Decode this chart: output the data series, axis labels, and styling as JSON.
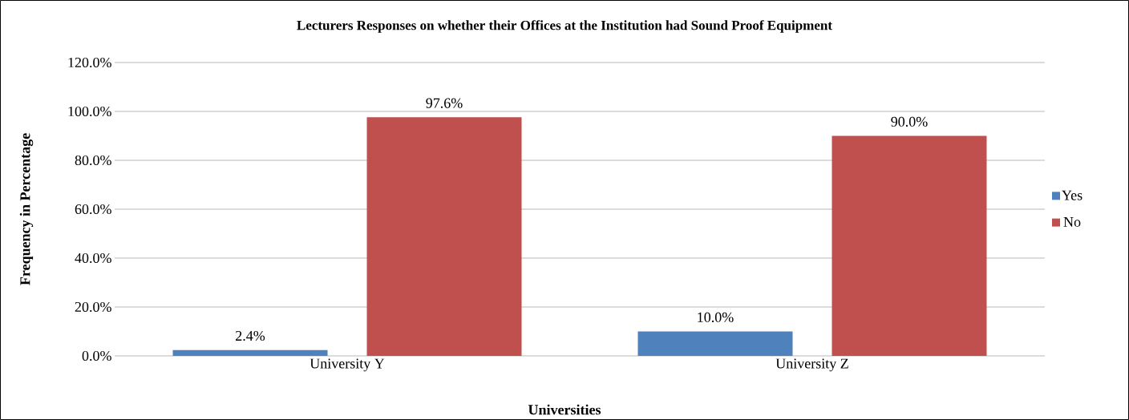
{
  "chart_data": {
    "type": "bar",
    "title": "Lecturers Responses on whether their Offices at the Institution had Sound Proof Equipment",
    "xlabel": "Universities",
    "ylabel": "Frequency in Percentage",
    "categories": [
      "University Y",
      "University Z"
    ],
    "series": [
      {
        "name": "Yes",
        "color": "#4f81bd",
        "values": [
          2.4,
          10.0
        ],
        "value_labels": [
          "2.4%",
          "10.0%"
        ]
      },
      {
        "name": "No",
        "color": "#c0504d",
        "values": [
          97.6,
          90.0
        ],
        "value_labels": [
          "97.6%",
          "90.0%"
        ]
      }
    ],
    "ylim": [
      0,
      120
    ],
    "yticks": [
      {
        "value": 0,
        "label": "0.0%"
      },
      {
        "value": 20,
        "label": "20.0%"
      },
      {
        "value": 40,
        "label": "40.0%"
      },
      {
        "value": 60,
        "label": "60.0%"
      },
      {
        "value": 80,
        "label": "80.0%"
      },
      {
        "value": 100,
        "label": "100.0%"
      },
      {
        "value": 120,
        "label": "120.0%"
      }
    ],
    "grid": "y",
    "legend": "right"
  }
}
